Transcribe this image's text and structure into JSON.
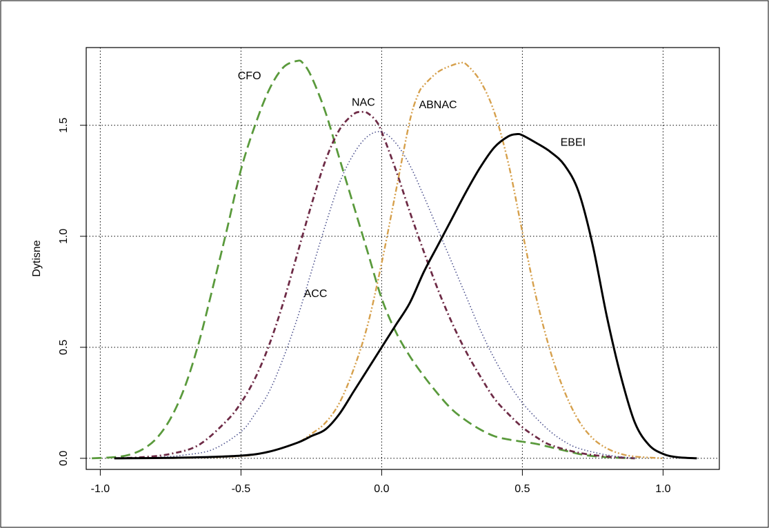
{
  "chart_data": {
    "type": "line",
    "title": "",
    "xlabel": "",
    "ylabel": "Dytisne",
    "xlim": [
      -1.05,
      1.2
    ],
    "ylim": [
      -0.05,
      1.85
    ],
    "xticks": [
      -1.0,
      -0.5,
      0.0,
      0.5,
      1.0
    ],
    "xtick_labels": [
      "-1.0",
      "-0.5",
      "0.0",
      "0.5",
      "1.0"
    ],
    "yticks": [
      0.0,
      0.5,
      1.0,
      1.5
    ],
    "ytick_labels": [
      "0.0",
      "0.5",
      "1.0",
      "1.5"
    ],
    "grid": true,
    "legend": "none",
    "series": [
      {
        "name": "CFO",
        "color": "#5a9a3c",
        "dash": "long-dash",
        "label_at": [
          -0.47,
          1.72
        ],
        "x": [
          -1.03,
          -0.95,
          -0.9,
          -0.85,
          -0.8,
          -0.75,
          -0.7,
          -0.65,
          -0.6,
          -0.55,
          -0.5,
          -0.45,
          -0.4,
          -0.35,
          -0.3,
          -0.28,
          -0.25,
          -0.2,
          -0.15,
          -0.1,
          -0.05,
          0.0,
          0.05,
          0.1,
          0.15,
          0.2,
          0.25,
          0.3,
          0.35,
          0.4,
          0.45,
          0.5,
          0.55,
          0.6,
          0.65,
          0.7,
          0.75,
          0.8,
          0.85,
          0.9
        ],
        "y": [
          0.0,
          0.005,
          0.015,
          0.04,
          0.09,
          0.18,
          0.32,
          0.52,
          0.77,
          1.03,
          1.3,
          1.5,
          1.66,
          1.76,
          1.79,
          1.78,
          1.72,
          1.56,
          1.35,
          1.14,
          0.93,
          0.72,
          0.57,
          0.46,
          0.37,
          0.29,
          0.22,
          0.17,
          0.13,
          0.1,
          0.085,
          0.075,
          0.065,
          0.05,
          0.035,
          0.02,
          0.01,
          0.005,
          0.002,
          0.0
        ]
      },
      {
        "name": "NAC",
        "color": "#6e2b46",
        "dash": "dash-dot",
        "label_at": [
          -0.065,
          1.6
        ],
        "x": [
          -0.95,
          -0.85,
          -0.75,
          -0.65,
          -0.55,
          -0.5,
          -0.45,
          -0.4,
          -0.35,
          -0.3,
          -0.25,
          -0.2,
          -0.15,
          -0.1,
          -0.07,
          -0.05,
          -0.02,
          0.0,
          0.05,
          0.1,
          0.15,
          0.2,
          0.25,
          0.3,
          0.35,
          0.4,
          0.45,
          0.5,
          0.55,
          0.6,
          0.7,
          0.8,
          0.9
        ],
        "y": [
          0.0,
          0.005,
          0.02,
          0.06,
          0.17,
          0.25,
          0.36,
          0.51,
          0.7,
          0.92,
          1.14,
          1.34,
          1.48,
          1.55,
          1.56,
          1.555,
          1.52,
          1.47,
          1.3,
          1.11,
          0.93,
          0.76,
          0.61,
          0.48,
          0.37,
          0.27,
          0.2,
          0.14,
          0.095,
          0.06,
          0.025,
          0.008,
          0.0
        ]
      },
      {
        "name": "ACC",
        "color": "#4a4f8c",
        "dash": "dotted",
        "label_at": [
          -0.235,
          0.74
        ],
        "x": [
          -0.95,
          -0.8,
          -0.7,
          -0.6,
          -0.5,
          -0.45,
          -0.4,
          -0.35,
          -0.3,
          -0.25,
          -0.2,
          -0.15,
          -0.1,
          -0.05,
          0.0,
          0.05,
          0.1,
          0.15,
          0.2,
          0.25,
          0.3,
          0.35,
          0.4,
          0.45,
          0.5,
          0.55,
          0.6,
          0.65,
          0.7,
          0.8,
          0.9
        ],
        "y": [
          0.0,
          0.004,
          0.015,
          0.04,
          0.12,
          0.2,
          0.3,
          0.45,
          0.63,
          0.84,
          1.05,
          1.24,
          1.37,
          1.45,
          1.47,
          1.42,
          1.32,
          1.18,
          1.03,
          0.88,
          0.73,
          0.58,
          0.45,
          0.34,
          0.25,
          0.18,
          0.12,
          0.075,
          0.045,
          0.015,
          0.0
        ]
      },
      {
        "name": "ABNAC",
        "color": "#d6a04c",
        "dash": "dash-dot-dot",
        "label_at": [
          0.2,
          1.59
        ],
        "x": [
          -0.9,
          -0.7,
          -0.5,
          -0.4,
          -0.3,
          -0.25,
          -0.2,
          -0.15,
          -0.1,
          -0.05,
          0.0,
          0.05,
          0.1,
          0.13,
          0.15,
          0.2,
          0.25,
          0.28,
          0.3,
          0.35,
          0.4,
          0.45,
          0.5,
          0.55,
          0.6,
          0.65,
          0.7,
          0.75,
          0.8,
          0.85,
          0.9,
          1.0
        ],
        "y": [
          0.0,
          0.002,
          0.01,
          0.03,
          0.07,
          0.11,
          0.16,
          0.25,
          0.4,
          0.6,
          0.88,
          1.2,
          1.52,
          1.64,
          1.68,
          1.74,
          1.77,
          1.78,
          1.775,
          1.7,
          1.56,
          1.33,
          1.02,
          0.72,
          0.48,
          0.3,
          0.17,
          0.09,
          0.045,
          0.02,
          0.008,
          0.0
        ]
      },
      {
        "name": "EBEI",
        "color": "#000000",
        "dash": "solid",
        "label_at": [
          0.68,
          1.42
        ],
        "x": [
          -0.95,
          -0.7,
          -0.5,
          -0.4,
          -0.3,
          -0.25,
          -0.2,
          -0.15,
          -0.1,
          -0.05,
          0.0,
          0.05,
          0.1,
          0.15,
          0.2,
          0.25,
          0.3,
          0.35,
          0.4,
          0.45,
          0.48,
          0.5,
          0.55,
          0.6,
          0.65,
          0.7,
          0.75,
          0.8,
          0.85,
          0.9,
          0.95,
          1.0,
          1.05,
          1.12
        ],
        "y": [
          0.0,
          0.003,
          0.012,
          0.03,
          0.07,
          0.1,
          0.13,
          0.2,
          0.3,
          0.4,
          0.5,
          0.6,
          0.7,
          0.84,
          0.96,
          1.08,
          1.2,
          1.31,
          1.4,
          1.45,
          1.46,
          1.455,
          1.42,
          1.38,
          1.32,
          1.2,
          0.96,
          0.64,
          0.37,
          0.16,
          0.06,
          0.02,
          0.005,
          0.0
        ]
      }
    ]
  }
}
